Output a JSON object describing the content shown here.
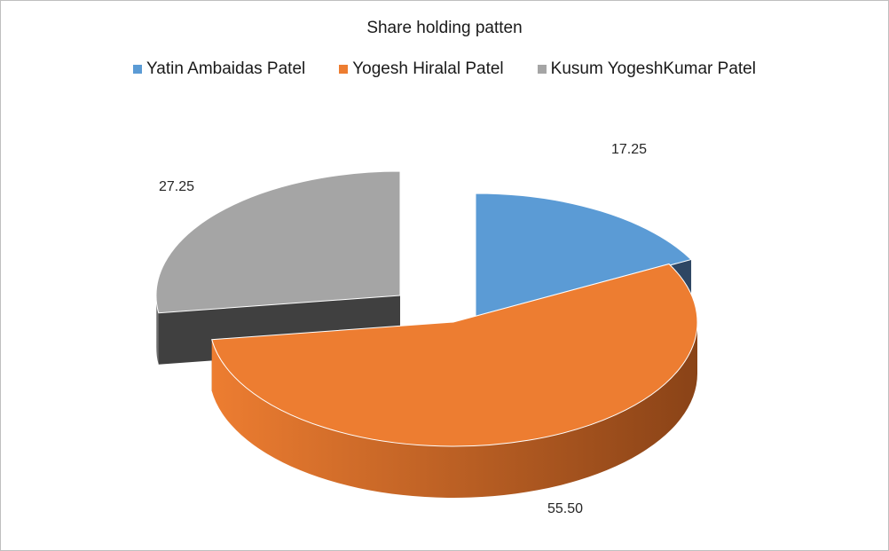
{
  "chart_data": {
    "type": "pie",
    "title": "Share holding patten",
    "legend_position": "top",
    "slices": [
      {
        "name": "Yatin Ambaidas Patel",
        "value": 17.25,
        "label": "17.25",
        "color": "#5b9bd5",
        "side_color": "#2e4663"
      },
      {
        "name": "Yogesh Hiralal Patel",
        "value": 55.5,
        "label": "55.50",
        "color": "#ed7d31",
        "side_color": "#8a4317"
      },
      {
        "name": "Kusum YogeshKumar Patel",
        "value": 27.25,
        "label": "27.25",
        "color": "#a5a5a5",
        "side_color": "#404040"
      }
    ]
  }
}
